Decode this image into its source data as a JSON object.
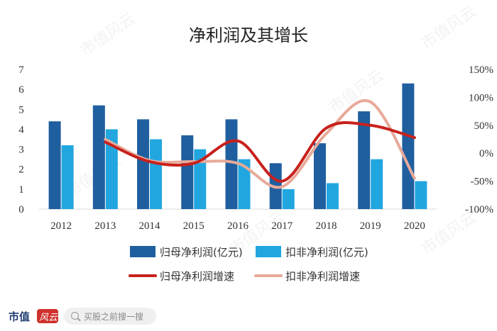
{
  "chart_data": {
    "type": "bar",
    "title": "净利润及其增长",
    "categories": [
      "2012",
      "2013",
      "2014",
      "2015",
      "2016",
      "2017",
      "2018",
      "2019",
      "2020"
    ],
    "y_left": {
      "ylim": [
        0,
        7
      ],
      "ticks": [
        "0",
        "1",
        "2",
        "3",
        "4",
        "5",
        "6",
        "7"
      ]
    },
    "y_right": {
      "ylim": [
        -100,
        150
      ],
      "ticks": [
        "-100%",
        "-50%",
        "0%",
        "50%",
        "100%",
        "150%"
      ]
    },
    "bar_series": [
      {
        "name": "归母净利润(亿元)",
        "color": "#1f5f9f",
        "values": [
          4.4,
          5.2,
          4.5,
          3.7,
          4.5,
          2.3,
          3.3,
          4.9,
          6.3
        ]
      },
      {
        "name": "扣非净利润(亿元)",
        "color": "#21a6e0",
        "values": [
          3.2,
          4.0,
          3.5,
          3.0,
          2.5,
          1.0,
          1.3,
          2.5,
          1.4
        ]
      }
    ],
    "line_series": [
      {
        "name": "归母净利润增速",
        "color": "#c8211c",
        "values": [
          null,
          20,
          -15,
          -18,
          22,
          -50,
          45,
          50,
          28
        ]
      },
      {
        "name": "扣非净利润增速",
        "color": "#e8aa9a",
        "values": [
          null,
          25,
          -13,
          -15,
          -18,
          -60,
          35,
          92,
          -45
        ]
      }
    ],
    "legend_position": "bottom",
    "grid": false
  },
  "watermark": "市值风云",
  "footer": {
    "brand": "市值",
    "logo_text": "风云",
    "search_placeholder": "买股之前搜一搜"
  }
}
